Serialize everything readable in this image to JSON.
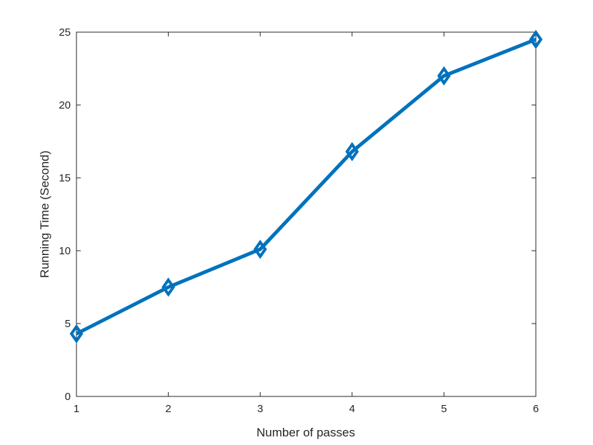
{
  "chart_data": {
    "type": "line",
    "x_label": "Number of passes",
    "y_label": "Running Time (Second)",
    "x": [
      1,
      2,
      3,
      4,
      5,
      6
    ],
    "series": [
      {
        "color": "#0072bd",
        "values": [
          4.3,
          7.5,
          10.1,
          16.8,
          22.0,
          24.5
        ]
      }
    ],
    "marker": "diamond",
    "xlim": [
      1,
      6
    ],
    "xticks": [
      1,
      2,
      3,
      4,
      5,
      6
    ],
    "ylim": [
      0,
      25
    ],
    "yticks": [
      0,
      5,
      10,
      15,
      20,
      25
    ],
    "grid": false
  }
}
